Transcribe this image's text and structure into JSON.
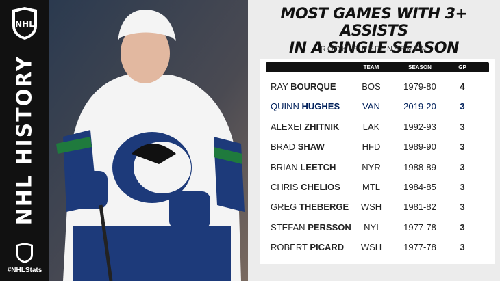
{
  "sidebar": {
    "logo": "NHL",
    "heading": "NHL HISTORY",
    "hashtag": "#NHLStats"
  },
  "header": {
    "title_lines": [
      "MOST GAMES WITH 3+ ASSISTS",
      "IN A SINGLE SEASON"
    ],
    "subtitle": "ROOKIE DEFENSEMEN"
  },
  "table": {
    "columns": [
      "TEAM",
      "SEASON",
      "GP"
    ],
    "rows": [
      [
        "RAY",
        "BOURQUE",
        "BOS",
        "1979-80",
        "4"
      ],
      [
        "QUINN",
        "HUGHES",
        "VAN",
        "2019-20",
        "3"
      ],
      [
        "ALEXEI",
        "ZHITNIK",
        "LAK",
        "1992-93",
        "3"
      ],
      [
        "BRAD",
        "SHAW",
        "HFD",
        "1989-90",
        "3"
      ],
      [
        "BRIAN",
        "LEETCH",
        "NYR",
        "1988-89",
        "3"
      ],
      [
        "CHRIS",
        "CHELIOS",
        "MTL",
        "1984-85",
        "3"
      ],
      [
        "GREG",
        "THEBERGE",
        "WSH",
        "1981-82",
        "3"
      ],
      [
        "STEFAN",
        "PERSSON",
        "NYI",
        "1977-78",
        "3"
      ],
      [
        "ROBERT",
        "PICARD",
        "WSH",
        "1977-78",
        "3"
      ]
    ]
  }
}
